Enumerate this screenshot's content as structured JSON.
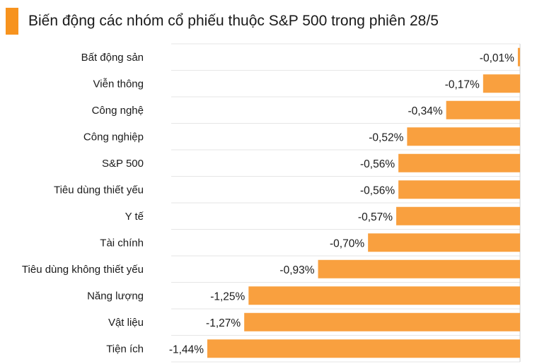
{
  "title": "Biến động các nhóm cổ phiếu thuộc S&P 500 trong phiên 28/5",
  "colors": {
    "accent": "#F7931E",
    "bar": "#F9A03F",
    "grid": "#e6e6e6",
    "text": "#1a1a1a"
  },
  "chart_data": {
    "type": "bar",
    "orientation": "horizontal",
    "title": "Biến động các nhóm cổ phiếu thuộc S&P 500 trong phiên 28/5",
    "xlabel": "",
    "ylabel": "",
    "categories": [
      "Bất động sản",
      "Viễn thông",
      "Công nghệ",
      "Công nghiệp",
      "S&P 500",
      "Tiêu dùng thiết yếu",
      "Y tế",
      "Tài chính",
      "Tiêu dùng không thiết yếu",
      "Năng lượng",
      "Vật liệu",
      "Tiện ích"
    ],
    "values": [
      -0.01,
      -0.17,
      -0.34,
      -0.52,
      -0.56,
      -0.56,
      -0.57,
      -0.7,
      -0.93,
      -1.25,
      -1.27,
      -1.44
    ],
    "data_labels": [
      "-0,01%",
      "-0,17%",
      "-0,34%",
      "-0,52%",
      "-0,56%",
      "-0,56%",
      "-0,57%",
      "-0,70%",
      "-0,93%",
      "-1,25%",
      "-1,27%",
      "-1,44%"
    ],
    "xlim": [
      -1.44,
      0
    ],
    "grid": true
  }
}
